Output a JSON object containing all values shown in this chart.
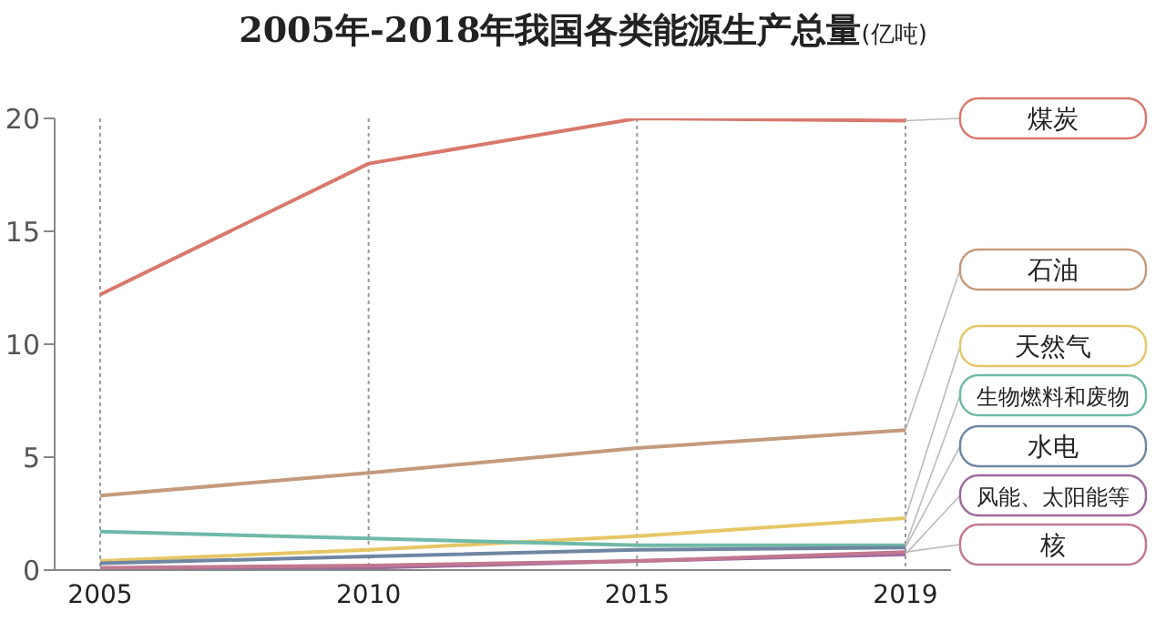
{
  "chart_data": {
    "type": "line",
    "title": "2005年-2018年我国各类能源生产总量",
    "subtitle": "(亿吨)",
    "categories": [
      "2005",
      "2010",
      "2015",
      "2019"
    ],
    "series": [
      {
        "name": "煤炭",
        "color": "#d9786c",
        "values": [
          12.2,
          18.0,
          20.0,
          19.9
        ]
      },
      {
        "name": "石油",
        "color": "#c49a7c",
        "values": [
          3.3,
          4.3,
          5.4,
          6.2
        ]
      },
      {
        "name": "天然气",
        "color": "#e6c766",
        "values": [
          0.4,
          0.9,
          1.5,
          2.3
        ]
      },
      {
        "name": "生物燃料和废物",
        "color": "#6fb9a8",
        "values": [
          1.7,
          1.4,
          1.1,
          1.1
        ]
      },
      {
        "name": "水电",
        "color": "#6f86a3",
        "values": [
          0.3,
          0.6,
          0.9,
          1.0
        ]
      },
      {
        "name": "风能、太阳能等",
        "color": "#9b6a9e",
        "values": [
          0.0,
          0.1,
          0.4,
          0.7
        ]
      },
      {
        "name": "核",
        "color": "#c27890",
        "values": [
          0.1,
          0.2,
          0.4,
          0.8
        ]
      }
    ],
    "ylim": [
      0,
      20
    ],
    "yticks": [
      0,
      5,
      10,
      15,
      20
    ],
    "grid": "x",
    "legend": "right",
    "marker": "none",
    "line_style": "solid"
  }
}
